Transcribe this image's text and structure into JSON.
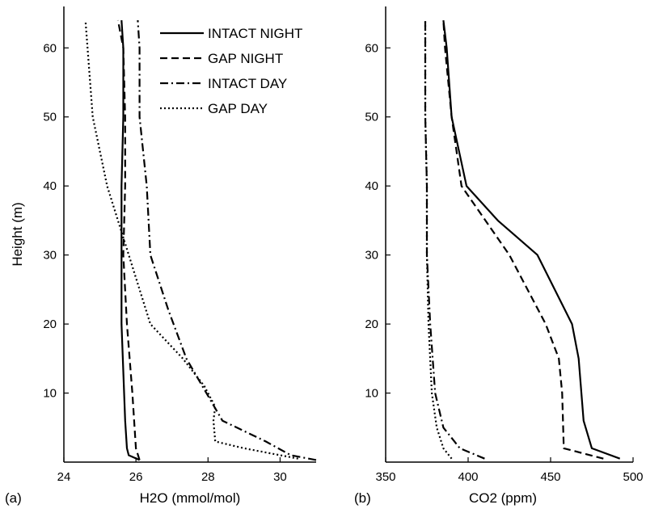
{
  "chart_data": [
    {
      "type": "line",
      "panel_label": "(a)",
      "xlabel": "H2O (mmol/mol)",
      "ylabel": "Height (m)",
      "xlim": [
        24,
        31
      ],
      "ylim": [
        0,
        66
      ],
      "xticks": [
        24,
        26,
        28,
        30
      ],
      "yticks": [
        10,
        20,
        30,
        40,
        50,
        60
      ],
      "grid": false,
      "legend_position": "top-right",
      "series": [
        {
          "name": "INTACT NIGHT",
          "style": "solid",
          "x": [
            26.1,
            25.8,
            25.75,
            25.7,
            25.6,
            25.6,
            25.6,
            25.65,
            25.65,
            25.6
          ],
          "y": [
            0.3,
            1,
            2,
            6,
            20,
            30,
            40,
            50,
            60,
            64
          ]
        },
        {
          "name": "GAP NIGHT",
          "style": "dashed",
          "x": [
            26.1,
            26.0,
            25.95,
            25.9,
            25.75,
            25.65,
            25.7,
            25.7,
            25.65,
            25.5
          ],
          "y": [
            0.3,
            2,
            6,
            10,
            20,
            30,
            40,
            50,
            60,
            64
          ]
        },
        {
          "name": "INTACT DAY",
          "style": "dashdot",
          "x": [
            31.0,
            30.3,
            29.6,
            28.4,
            27.4,
            26.9,
            26.4,
            26.3,
            26.1,
            26.1,
            26.05
          ],
          "y": [
            0.3,
            1,
            3,
            6,
            15,
            22,
            30,
            40,
            50,
            60,
            64
          ]
        },
        {
          "name": "GAP DAY",
          "style": "dotted",
          "x": [
            30.5,
            29.0,
            28.2,
            28.15,
            28.2,
            27.9,
            27.3,
            26.4,
            25.5,
            25.2,
            24.8,
            24.6
          ],
          "y": [
            0.5,
            2,
            3,
            6,
            8,
            11,
            15,
            20,
            35,
            40,
            50,
            64
          ]
        }
      ]
    },
    {
      "type": "line",
      "panel_label": "(b)",
      "xlabel": "CO2 (ppm)",
      "ylabel": "",
      "xlim": [
        350,
        500
      ],
      "ylim": [
        0,
        66
      ],
      "xticks": [
        350,
        400,
        450,
        500
      ],
      "yticks": [
        10,
        20,
        30,
        40,
        50,
        60
      ],
      "grid": false,
      "series": [
        {
          "name": "INTACT NIGHT",
          "style": "solid",
          "x": [
            492,
            475,
            470,
            467,
            463,
            442,
            418,
            399,
            390,
            387,
            385
          ],
          "y": [
            0.5,
            2,
            6,
            15,
            20,
            30,
            35,
            40,
            50,
            60,
            64
          ]
        },
        {
          "name": "GAP NIGHT",
          "style": "dashed",
          "x": [
            482,
            458,
            457,
            455,
            447,
            425,
            396,
            390,
            386,
            385
          ],
          "y": [
            0.5,
            2,
            10,
            15,
            20,
            30,
            40,
            50,
            60,
            64
          ]
        },
        {
          "name": "INTACT DAY",
          "style": "dashdot",
          "x": [
            410,
            395,
            385,
            380,
            377,
            375,
            375,
            374,
            374
          ],
          "y": [
            0.5,
            2,
            5,
            10,
            20,
            30,
            40,
            50,
            64
          ]
        },
        {
          "name": "GAP DAY",
          "style": "dotted",
          "x": [
            390,
            385,
            381,
            378,
            376,
            375,
            375,
            374,
            374
          ],
          "y": [
            0.5,
            2,
            5,
            10,
            20,
            30,
            40,
            50,
            64
          ]
        }
      ]
    }
  ],
  "colors": {
    "line": "#000000",
    "background": "#ffffff"
  }
}
